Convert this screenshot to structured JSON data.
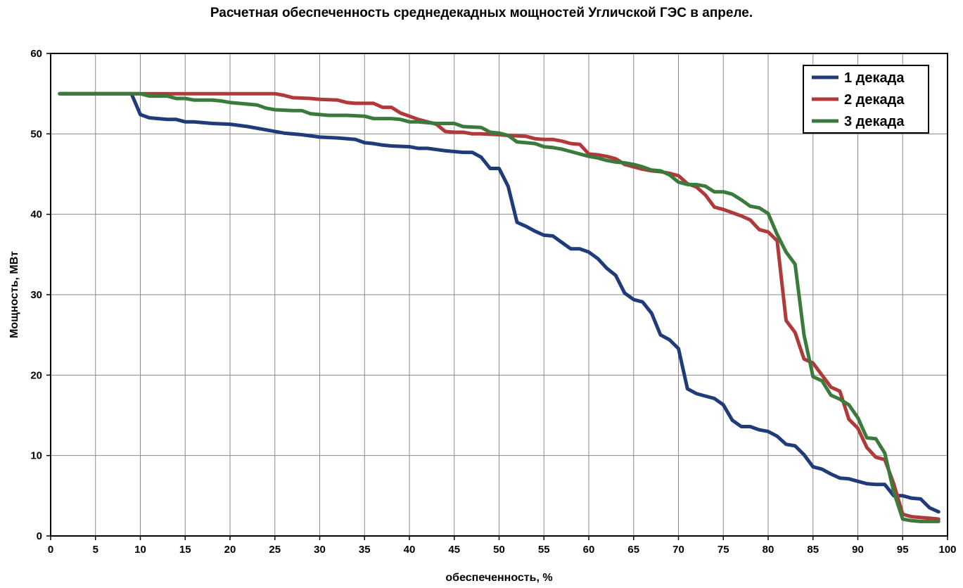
{
  "chart_data": {
    "type": "line",
    "title": "Расчетная обеспеченность среднедекадных мощностей Угличской ГЭС в апреле.",
    "xlabel": "обеспеченность, %",
    "ylabel": "Мощность, МВт",
    "xlim": [
      0,
      100
    ],
    "ylim": [
      0,
      60
    ],
    "xticks": [
      0,
      5,
      10,
      15,
      20,
      25,
      30,
      35,
      40,
      45,
      50,
      55,
      60,
      65,
      70,
      75,
      80,
      85,
      90,
      95,
      100
    ],
    "yticks": [
      0,
      10,
      20,
      30,
      40,
      50,
      60
    ],
    "x_gridlines_step": 5,
    "grid": true,
    "legend_position": "top-right",
    "series": [
      {
        "name": "1 декада",
        "color": "#1f3b7a",
        "points": [
          [
            1,
            55
          ],
          [
            9,
            55
          ],
          [
            10,
            52.4
          ],
          [
            11,
            52
          ],
          [
            13,
            51.8
          ],
          [
            14,
            51.8
          ],
          [
            15,
            51.5
          ],
          [
            16,
            51.5
          ],
          [
            18,
            51.3
          ],
          [
            20,
            51.2
          ],
          [
            22,
            50.9
          ],
          [
            24,
            50.5
          ],
          [
            26,
            50.1
          ],
          [
            28,
            49.9
          ],
          [
            30,
            49.6
          ],
          [
            32,
            49.5
          ],
          [
            34,
            49.3
          ],
          [
            35,
            48.9
          ],
          [
            36,
            48.8
          ],
          [
            37,
            48.6
          ],
          [
            38,
            48.5
          ],
          [
            40,
            48.4
          ],
          [
            41,
            48.2
          ],
          [
            42,
            48.2
          ],
          [
            44,
            47.9
          ],
          [
            46,
            47.7
          ],
          [
            47,
            47.7
          ],
          [
            48,
            47.1
          ],
          [
            49,
            45.7
          ],
          [
            50,
            45.7
          ],
          [
            51,
            43.5
          ],
          [
            52,
            39
          ],
          [
            53,
            38.5
          ],
          [
            54,
            37.9
          ],
          [
            55,
            37.4
          ],
          [
            56,
            37.3
          ],
          [
            57,
            36.5
          ],
          [
            58,
            35.7
          ],
          [
            59,
            35.7
          ],
          [
            60,
            35.3
          ],
          [
            61,
            34.5
          ],
          [
            62,
            33.3
          ],
          [
            63,
            32.4
          ],
          [
            64,
            30.2
          ],
          [
            65,
            29.4
          ],
          [
            66,
            29.1
          ],
          [
            67,
            27.7
          ],
          [
            68,
            25
          ],
          [
            69,
            24.4
          ],
          [
            70,
            23.3
          ],
          [
            71,
            18.3
          ],
          [
            72,
            17.7
          ],
          [
            73,
            17.4
          ],
          [
            74,
            17.1
          ],
          [
            75,
            16.3
          ],
          [
            76,
            14.4
          ],
          [
            77,
            13.6
          ],
          [
            78,
            13.6
          ],
          [
            79,
            13.2
          ],
          [
            80,
            13
          ],
          [
            81,
            12.4
          ],
          [
            82,
            11.4
          ],
          [
            83,
            11.2
          ],
          [
            84,
            10.1
          ],
          [
            85,
            8.6
          ],
          [
            86,
            8.3
          ],
          [
            87,
            7.7
          ],
          [
            88,
            7.2
          ],
          [
            89,
            7.1
          ],
          [
            90,
            6.8
          ],
          [
            91,
            6.5
          ],
          [
            92,
            6.4
          ],
          [
            93,
            6.4
          ],
          [
            94,
            5
          ],
          [
            95,
            5
          ],
          [
            96,
            4.7
          ],
          [
            97,
            4.6
          ],
          [
            98,
            3.5
          ],
          [
            99,
            3
          ]
        ]
      },
      {
        "name": "2 декада",
        "color": "#b03a3a",
        "points": [
          [
            1,
            55
          ],
          [
            25,
            55
          ],
          [
            26,
            54.8
          ],
          [
            27,
            54.5
          ],
          [
            29,
            54.4
          ],
          [
            30,
            54.3
          ],
          [
            32,
            54.2
          ],
          [
            33,
            53.9
          ],
          [
            34,
            53.8
          ],
          [
            36,
            53.8
          ],
          [
            37,
            53.3
          ],
          [
            38,
            53.3
          ],
          [
            39,
            52.6
          ],
          [
            40,
            52.2
          ],
          [
            41,
            51.8
          ],
          [
            42,
            51.5
          ],
          [
            43,
            51.2
          ],
          [
            44,
            50.3
          ],
          [
            45,
            50.2
          ],
          [
            46,
            50.2
          ],
          [
            47,
            50
          ],
          [
            48,
            50
          ],
          [
            50,
            49.9
          ],
          [
            51,
            49.8
          ],
          [
            53,
            49.7
          ],
          [
            54,
            49.4
          ],
          [
            55,
            49.3
          ],
          [
            56,
            49.3
          ],
          [
            57,
            49.1
          ],
          [
            58,
            48.8
          ],
          [
            59,
            48.7
          ],
          [
            60,
            47.5
          ],
          [
            61,
            47.4
          ],
          [
            62,
            47.2
          ],
          [
            63,
            46.9
          ],
          [
            64,
            46.2
          ],
          [
            65,
            45.9
          ],
          [
            66,
            45.6
          ],
          [
            67,
            45.4
          ],
          [
            68,
            45.3
          ],
          [
            69,
            45.1
          ],
          [
            70,
            44.8
          ],
          [
            71,
            43.8
          ],
          [
            72,
            43.4
          ],
          [
            73,
            42.4
          ],
          [
            74,
            40.9
          ],
          [
            75,
            40.6
          ],
          [
            76,
            40.2
          ],
          [
            77,
            39.8
          ],
          [
            78,
            39.3
          ],
          [
            79,
            38.1
          ],
          [
            80,
            37.8
          ],
          [
            81,
            36.7
          ],
          [
            82,
            26.8
          ],
          [
            83,
            25.3
          ],
          [
            84,
            22
          ],
          [
            85,
            21.5
          ],
          [
            86,
            20
          ],
          [
            87,
            18.5
          ],
          [
            88,
            18
          ],
          [
            89,
            14.5
          ],
          [
            90,
            13.4
          ],
          [
            91,
            11
          ],
          [
            92,
            9.8
          ],
          [
            93,
            9.5
          ],
          [
            94,
            6.5
          ],
          [
            95,
            2.7
          ],
          [
            96,
            2.4
          ],
          [
            97,
            2.3
          ],
          [
            98,
            2.2
          ],
          [
            99,
            2.1
          ]
        ]
      },
      {
        "name": "3 декада",
        "color": "#3a7a3a",
        "points": [
          [
            1,
            55
          ],
          [
            10,
            55
          ],
          [
            11,
            54.7
          ],
          [
            13,
            54.7
          ],
          [
            14,
            54.4
          ],
          [
            15,
            54.4
          ],
          [
            16,
            54.2
          ],
          [
            18,
            54.2
          ],
          [
            19,
            54.1
          ],
          [
            20,
            53.9
          ],
          [
            21,
            53.8
          ],
          [
            23,
            53.6
          ],
          [
            24,
            53.2
          ],
          [
            25,
            53
          ],
          [
            27,
            52.9
          ],
          [
            28,
            52.9
          ],
          [
            29,
            52.5
          ],
          [
            31,
            52.3
          ],
          [
            33,
            52.3
          ],
          [
            35,
            52.2
          ],
          [
            36,
            51.9
          ],
          [
            38,
            51.9
          ],
          [
            39,
            51.8
          ],
          [
            40,
            51.5
          ],
          [
            41,
            51.5
          ],
          [
            43,
            51.3
          ],
          [
            45,
            51.3
          ],
          [
            46,
            50.9
          ],
          [
            48,
            50.8
          ],
          [
            49,
            50.2
          ],
          [
            50,
            50.1
          ],
          [
            51,
            49.8
          ],
          [
            52,
            49
          ],
          [
            53,
            48.9
          ],
          [
            54,
            48.8
          ],
          [
            55,
            48.4
          ],
          [
            56,
            48.3
          ],
          [
            57,
            48.1
          ],
          [
            58,
            47.8
          ],
          [
            59,
            47.5
          ],
          [
            60,
            47.2
          ],
          [
            61,
            47
          ],
          [
            62,
            46.7
          ],
          [
            63,
            46.5
          ],
          [
            64,
            46.4
          ],
          [
            65,
            46.2
          ],
          [
            66,
            45.9
          ],
          [
            67,
            45.5
          ],
          [
            68,
            45.4
          ],
          [
            69,
            44.9
          ],
          [
            70,
            44
          ],
          [
            71,
            43.7
          ],
          [
            72,
            43.7
          ],
          [
            73,
            43.5
          ],
          [
            74,
            42.8
          ],
          [
            75,
            42.8
          ],
          [
            76,
            42.5
          ],
          [
            77,
            41.8
          ],
          [
            78,
            41
          ],
          [
            79,
            40.8
          ],
          [
            80,
            40.1
          ],
          [
            81,
            37.5
          ],
          [
            82,
            35.3
          ],
          [
            83,
            33.8
          ],
          [
            84,
            25
          ],
          [
            85,
            19.8
          ],
          [
            86,
            19.3
          ],
          [
            87,
            17.5
          ],
          [
            88,
            17
          ],
          [
            89,
            16.3
          ],
          [
            90,
            14.7
          ],
          [
            91,
            12.2
          ],
          [
            92,
            12.1
          ],
          [
            93,
            10.3
          ],
          [
            94,
            5.5
          ],
          [
            95,
            2.1
          ],
          [
            96,
            1.9
          ],
          [
            97,
            1.8
          ],
          [
            98,
            1.8
          ],
          [
            99,
            1.8
          ]
        ]
      }
    ]
  }
}
